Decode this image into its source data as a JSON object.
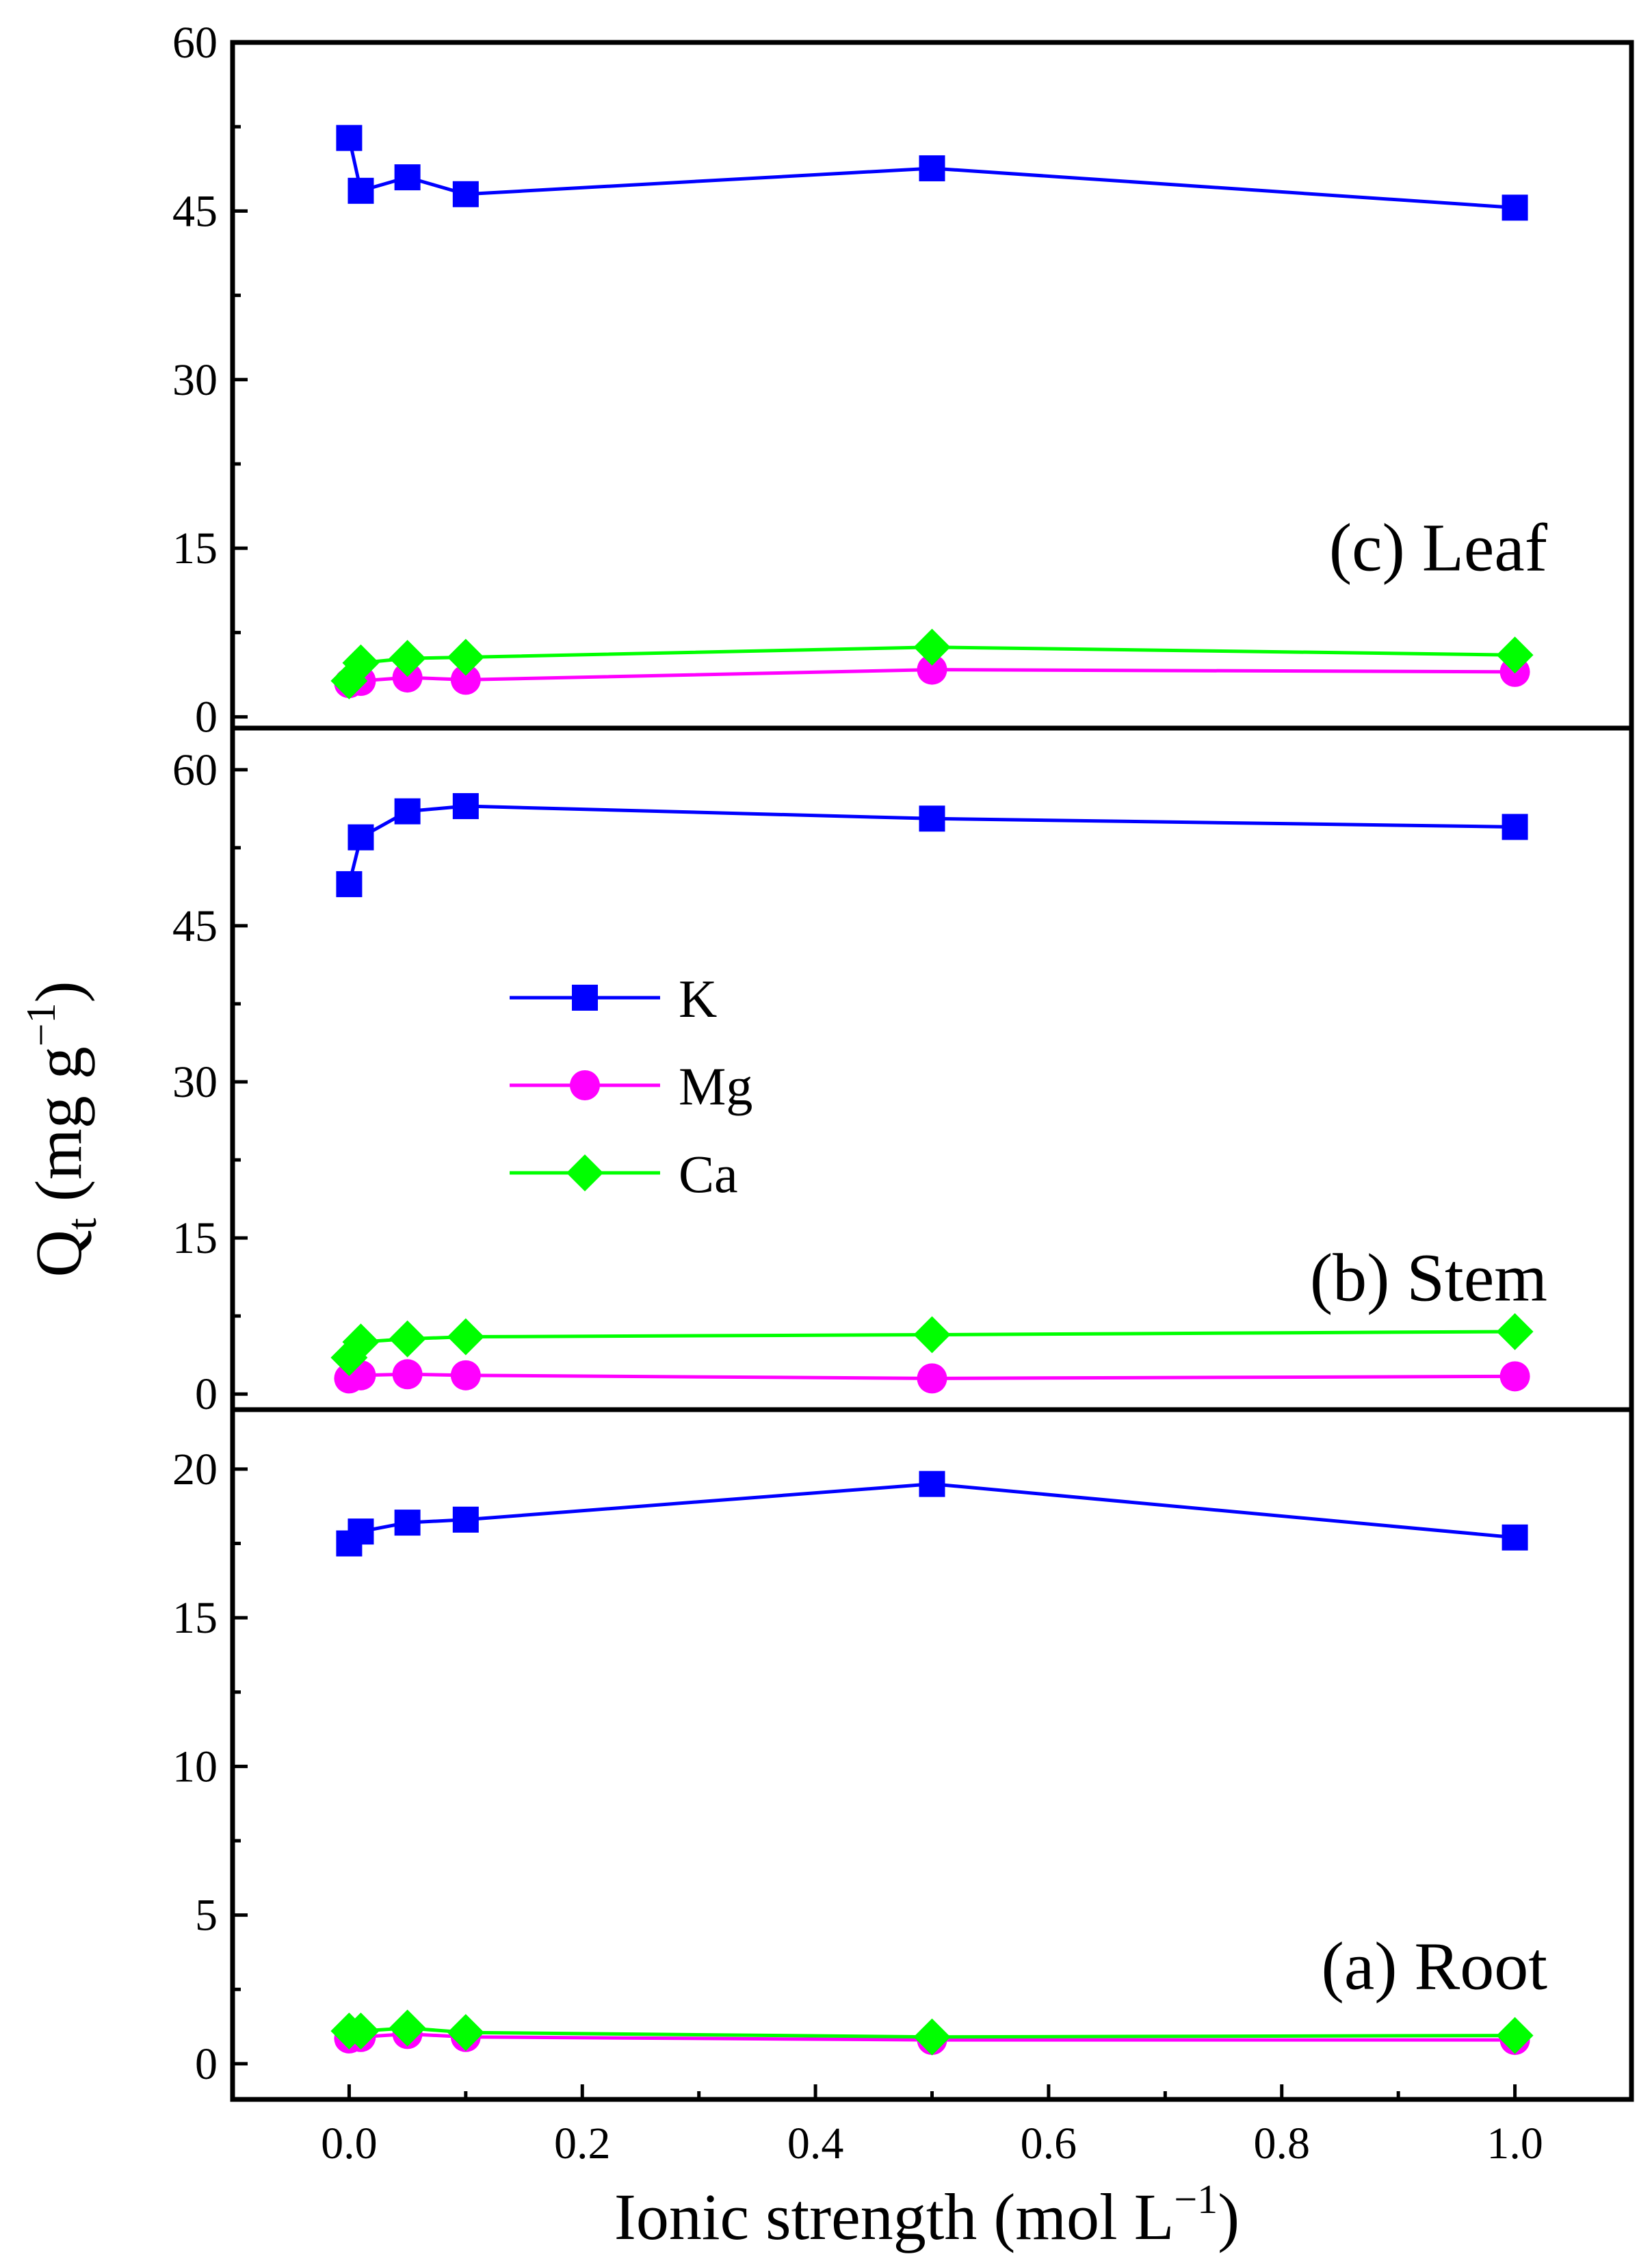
{
  "chart_data": {
    "type": "line",
    "x": [
      0,
      0.01,
      0.05,
      0.1,
      0.5,
      1.0
    ],
    "xlabel": "Ionic strength (mol L",
    "xlabel_sup": "−1",
    "xlabel_end": ")",
    "xlim": [
      -0.1,
      1.1
    ],
    "xticks": [
      0.0,
      0.2,
      0.4,
      0.6,
      0.8,
      1.0
    ],
    "xtick_labels": [
      "0.0",
      "0.2",
      "0.4",
      "0.6",
      "0.8",
      "1.0"
    ],
    "ylabel": "Q",
    "ylabel_sub": "t",
    "ylabel_unit": " (mg g",
    "ylabel_sup": "−1",
    "ylabel_end": ")",
    "legend": {
      "placement": "middle panel, upper-left",
      "entries": [
        {
          "name": "K",
          "color": "#0000ff",
          "marker": "square"
        },
        {
          "name": "Mg",
          "color": "#ff00ff",
          "marker": "circle"
        },
        {
          "name": "Ca",
          "color": "#00ff00",
          "marker": "diamond"
        }
      ]
    },
    "panels": [
      {
        "label": "(c) Leaf",
        "ylim": [
          -1,
          60
        ],
        "yticks": [
          0,
          15,
          30,
          45,
          60
        ],
        "ytick_labels": [
          "0",
          "15",
          "30",
          "45",
          "60"
        ],
        "series": [
          {
            "name": "K",
            "values": [
              51.5,
              46.8,
              48.0,
              46.5,
              48.8,
              45.3
            ]
          },
          {
            "name": "Mg",
            "values": [
              3.0,
              3.2,
              3.5,
              3.3,
              4.2,
              4.0
            ]
          },
          {
            "name": "Ca",
            "values": [
              3.2,
              4.8,
              5.2,
              5.3,
              6.2,
              5.5
            ]
          }
        ]
      },
      {
        "label": "(b) Stem",
        "ylim": [
          -1.5,
          64
        ],
        "yticks": [
          0,
          15,
          30,
          45,
          60
        ],
        "ytick_labels": [
          "0",
          "15",
          "30",
          "45",
          "60"
        ],
        "series": [
          {
            "name": "K",
            "values": [
              49.0,
              53.5,
              56.0,
              56.5,
              55.3,
              54.5
            ]
          },
          {
            "name": "Mg",
            "values": [
              1.5,
              1.8,
              1.9,
              1.8,
              1.5,
              1.7
            ]
          },
          {
            "name": "Ca",
            "values": [
              3.5,
              5.0,
              5.3,
              5.5,
              5.7,
              6.0
            ]
          }
        ]
      },
      {
        "label": "(a) Root",
        "ylim": [
          -1.2,
          22
        ],
        "yticks": [
          0,
          5,
          10,
          15,
          20
        ],
        "ytick_labels": [
          "0",
          "5",
          "10",
          "15",
          "20"
        ],
        "series": [
          {
            "name": "K",
            "values": [
              17.5,
              17.9,
              18.2,
              18.3,
              19.5,
              17.7
            ]
          },
          {
            "name": "Mg",
            "values": [
              0.85,
              0.9,
              1.0,
              0.9,
              0.8,
              0.8
            ]
          },
          {
            "name": "Ca",
            "values": [
              1.1,
              1.1,
              1.2,
              1.05,
              0.9,
              0.95
            ]
          }
        ]
      }
    ]
  }
}
